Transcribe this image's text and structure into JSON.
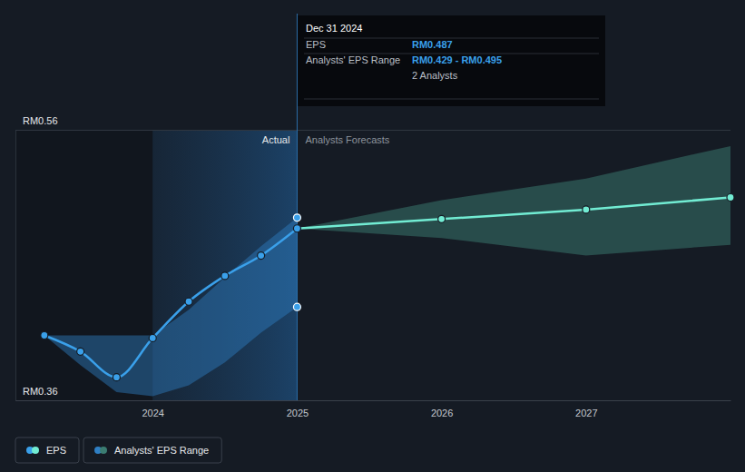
{
  "chart_data": {
    "type": "line",
    "x": [
      2023.25,
      2023.5,
      2023.75,
      2024,
      2024.25,
      2024.5,
      2024.75,
      2025
    ],
    "series": [
      {
        "name": "EPS",
        "color": "#3aa0ea",
        "marker": "circle",
        "values": [
          0.408,
          0.396,
          0.377,
          0.406,
          0.433,
          0.452,
          0.467,
          0.487
        ]
      }
    ],
    "forecast": {
      "x": [
        2025,
        2026,
        2027,
        2028
      ],
      "values": [
        0.487,
        0.494,
        0.501,
        0.51
      ],
      "color": "#72ecd3",
      "marker": "circle"
    },
    "range": {
      "name": "Analysts' EPS Range",
      "actual": {
        "x": [
          2023.25,
          2023.5,
          2023.75,
          2024,
          2024.25,
          2024.5,
          2024.75,
          2025
        ],
        "low": [
          0.408,
          0.386,
          0.366,
          0.363,
          0.371,
          0.388,
          0.41,
          0.429
        ],
        "high": [
          0.408,
          0.408,
          0.408,
          0.408,
          0.427,
          0.451,
          0.474,
          0.495
        ],
        "color": "#2f7fc4"
      },
      "forecast": {
        "x": [
          2025,
          2026,
          2027,
          2028
        ],
        "low": [
          0.487,
          0.48,
          0.467,
          0.475
        ],
        "high": [
          0.487,
          0.508,
          0.524,
          0.548
        ],
        "color": "#3b7d72"
      }
    },
    "sections": {
      "actual": "Actual",
      "forecast": "Analysts Forecasts"
    },
    "tooltip": {
      "title": "Dec 31 2024",
      "rows": [
        {
          "label": "EPS",
          "value": "RM0.487"
        },
        {
          "label": "Analysts' EPS Range",
          "value": "RM0.429 - RM0.495",
          "note": "2 Analysts"
        }
      ]
    },
    "xlim": [
      2023.05,
      2028
    ],
    "xticks": [
      2024,
      2025,
      2026,
      2027
    ],
    "ylim": [
      0.36,
      0.56
    ],
    "yticks": [
      {
        "value": 0.36,
        "label": "RM0.36"
      },
      {
        "value": 0.56,
        "label": "RM0.56"
      }
    ],
    "grid": true,
    "legend": "bottom-left"
  }
}
